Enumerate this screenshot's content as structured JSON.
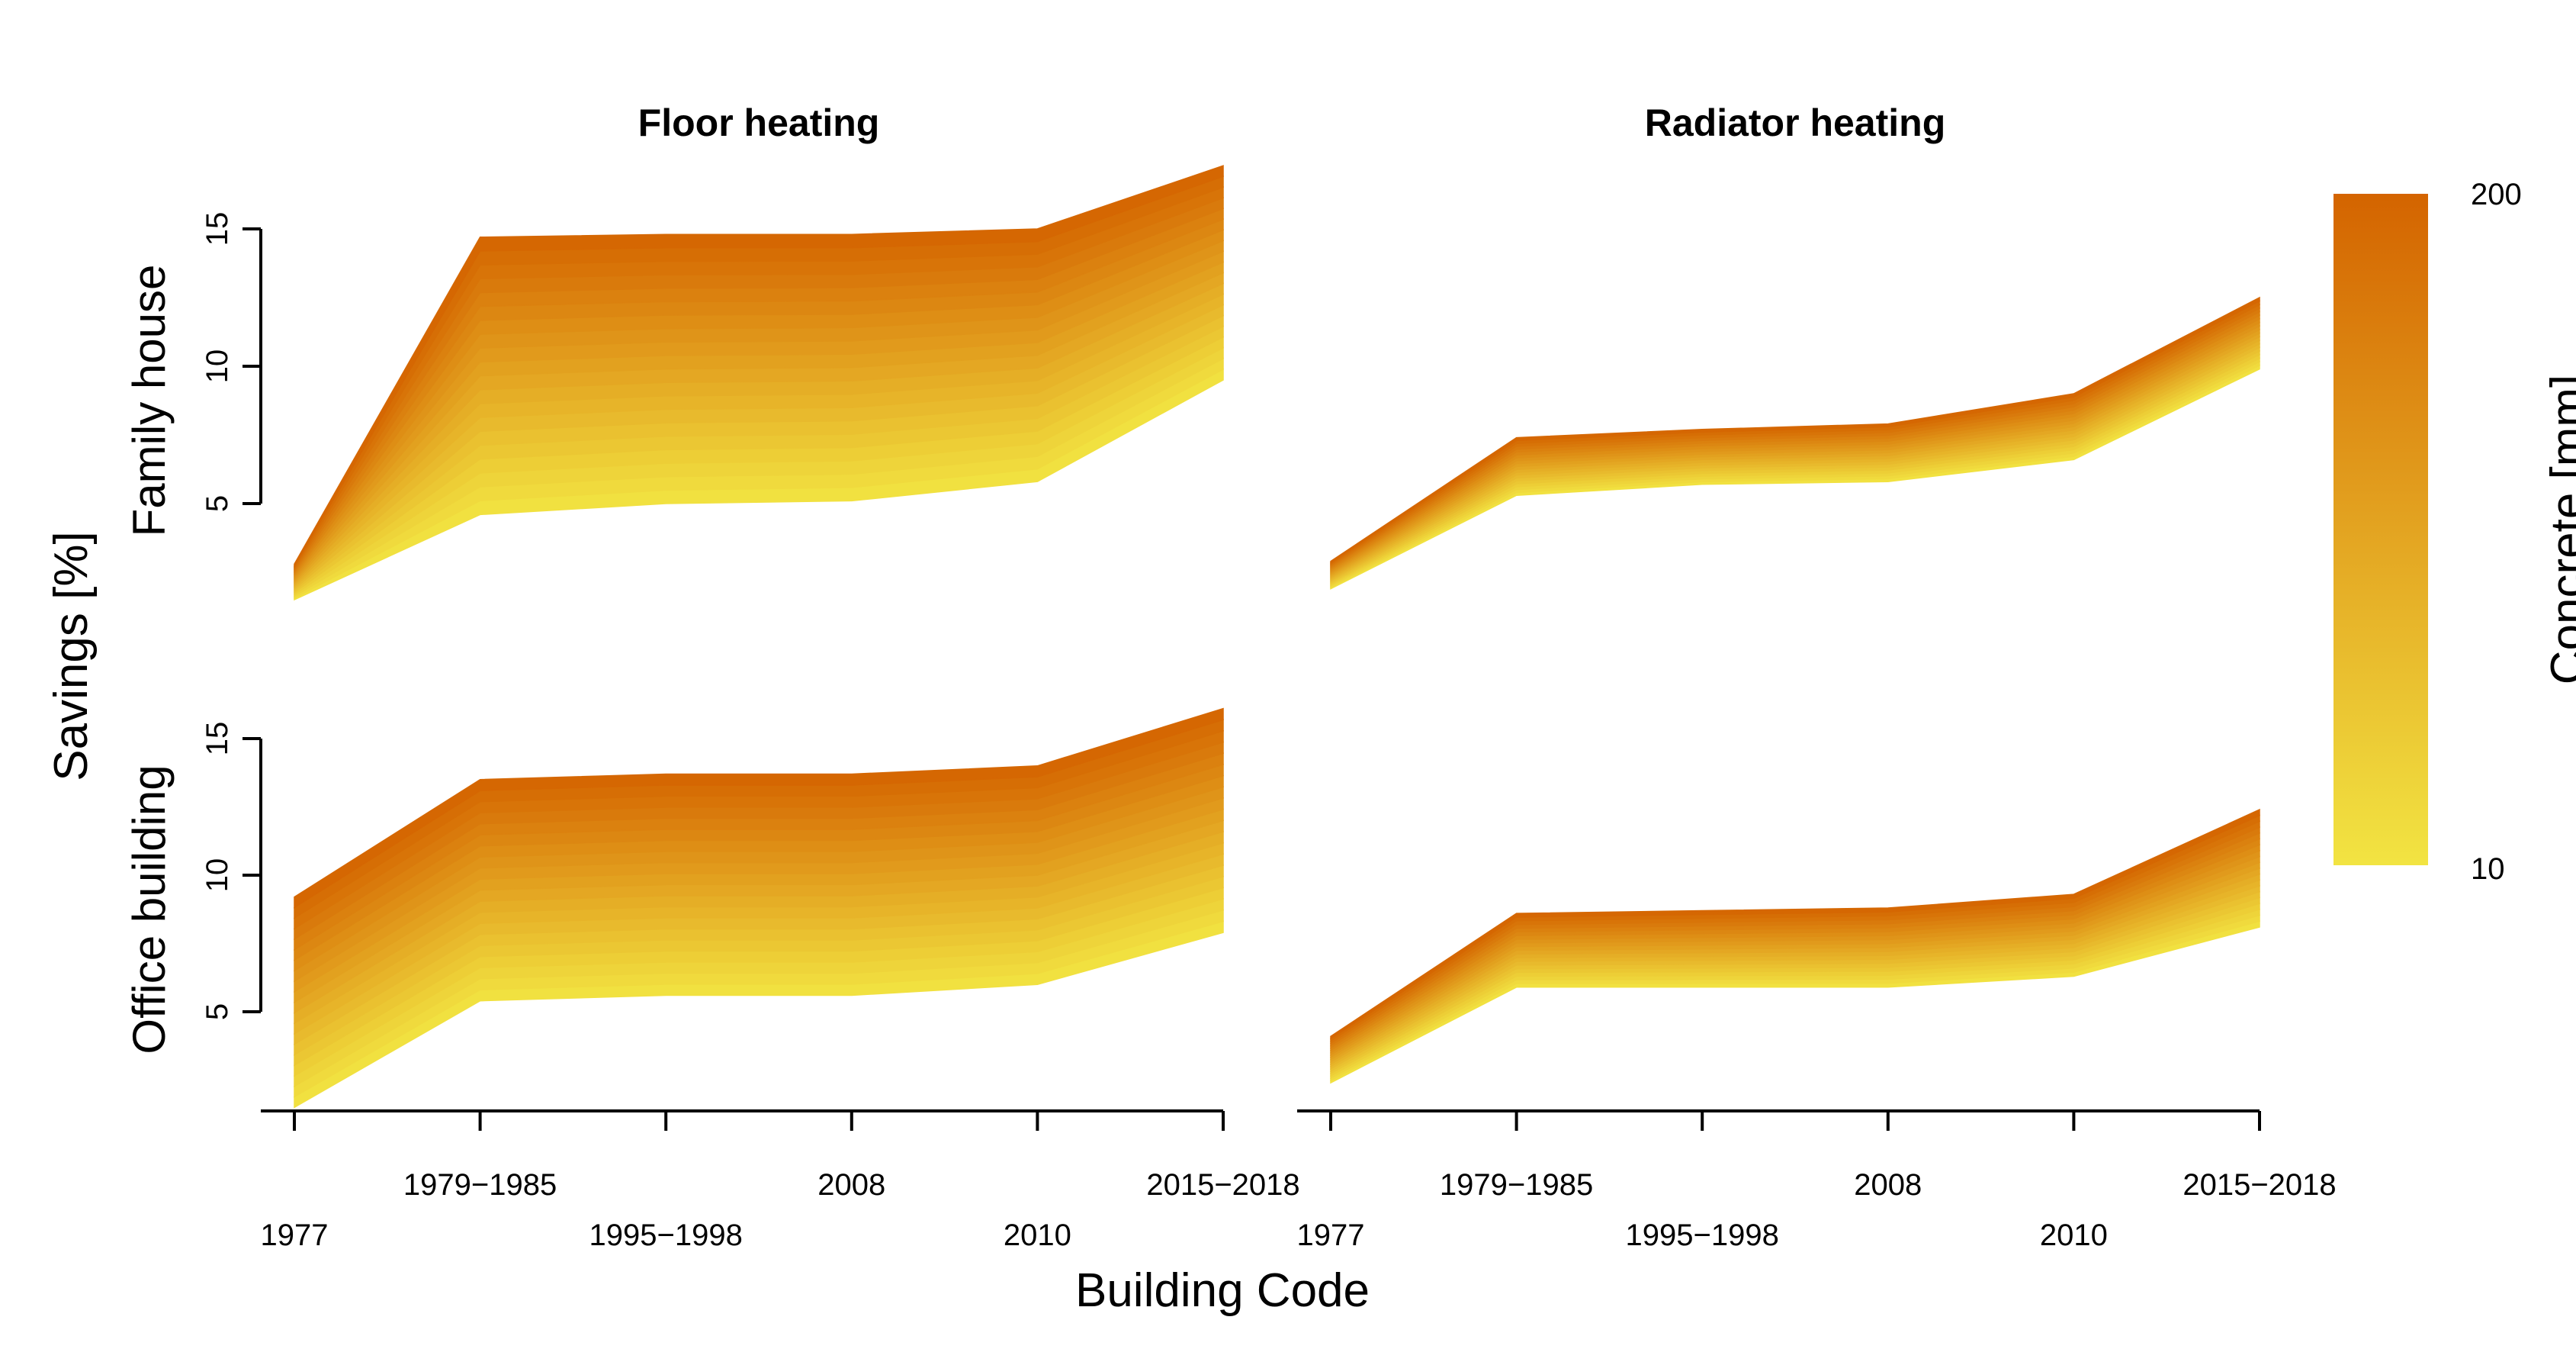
{
  "chart_data": {
    "type": "area",
    "xlabel": "Building Code",
    "ylabel": "Savings [%]",
    "categories": [
      "1977",
      "1979−1985",
      "1995−1998",
      "2008",
      "2010",
      "2015−2018"
    ],
    "ylim": [
      1.5,
      17
    ],
    "yticks": [
      5,
      10,
      15
    ],
    "columns": [
      "Floor heating",
      "Radiator heating"
    ],
    "rows": [
      "Family house",
      "Office building"
    ],
    "color_scale": {
      "title": "Concrete [mm]",
      "min": 10,
      "max": 200,
      "min_label": "10",
      "max_label": "200",
      "low_color": "#F2E442",
      "high_color": "#D46400",
      "n_bands": 20
    },
    "panels": [
      {
        "row": "Family house",
        "column": "Floor heating",
        "lower_10mm": [
          1.5,
          4.6,
          5.0,
          5.1,
          5.8,
          9.5
        ],
        "upper_200mm": [
          2.8,
          14.7,
          14.8,
          14.8,
          15.0,
          17.3
        ]
      },
      {
        "row": "Family house",
        "column": "Radiator heating",
        "lower_10mm": [
          1.9,
          5.3,
          5.7,
          5.8,
          6.6,
          9.9
        ],
        "upper_200mm": [
          2.9,
          7.4,
          7.7,
          7.9,
          9.0,
          12.5
        ]
      },
      {
        "row": "Office building",
        "column": "Floor heating",
        "lower_10mm": [
          1.5,
          5.4,
          5.6,
          5.6,
          6.0,
          7.9
        ],
        "upper_200mm": [
          9.2,
          13.5,
          13.7,
          13.7,
          14.0,
          16.1
        ]
      },
      {
        "row": "Office building",
        "column": "Radiator heating",
        "lower_10mm": [
          2.4,
          5.9,
          5.9,
          5.9,
          6.3,
          8.1
        ],
        "upper_200mm": [
          4.1,
          8.6,
          8.7,
          8.8,
          9.3,
          12.4
        ]
      }
    ]
  }
}
